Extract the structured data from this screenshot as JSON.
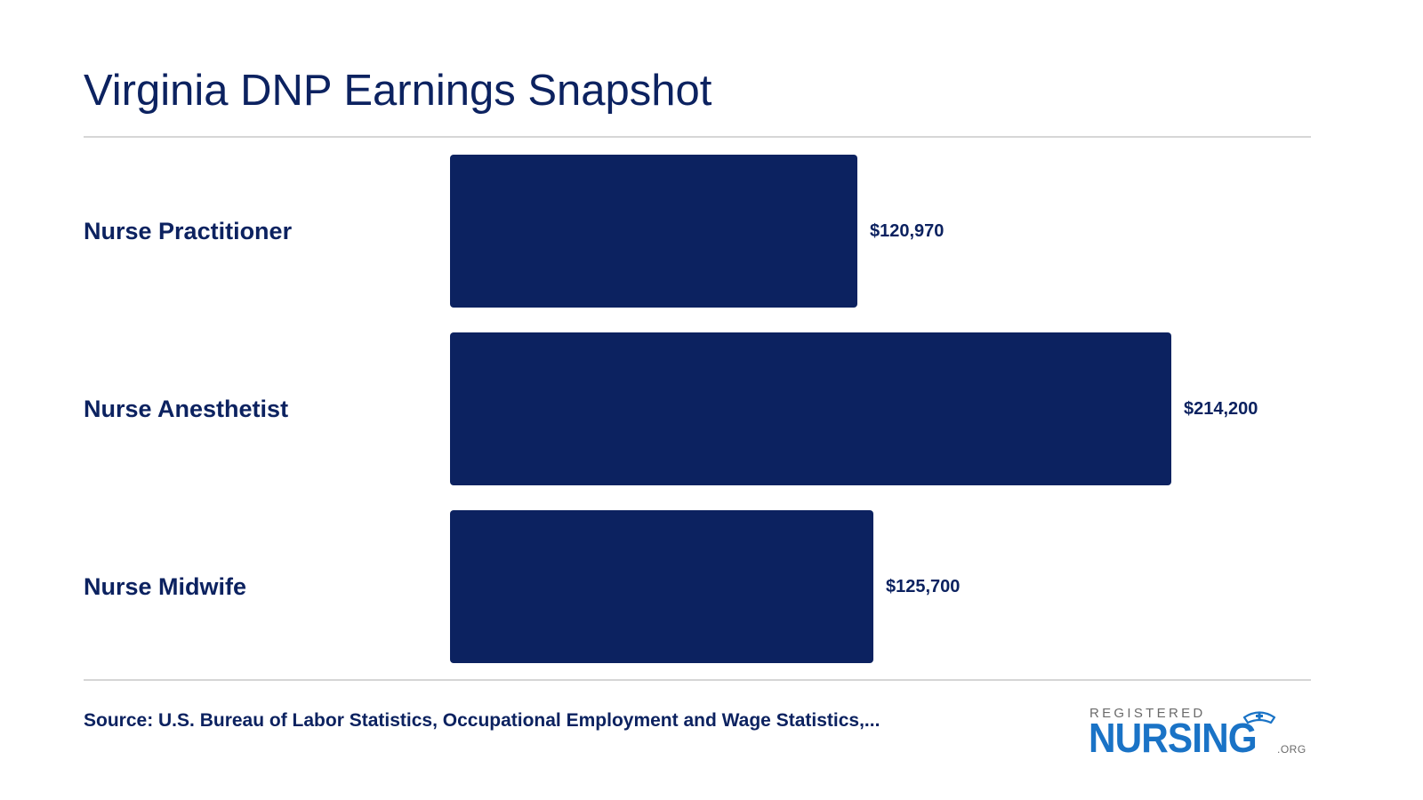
{
  "title": "Virginia DNP Earnings Snapshot",
  "source": "Source: U.S. Bureau of Labor Statistics, Occupational Employment and Wage Statistics,...",
  "logo": {
    "registered": "REGISTERED",
    "nursing": "NURSING",
    "org": ".ORG",
    "icon": "nurse-cap-icon"
  },
  "colors": {
    "bar": "#0c2260",
    "text": "#0c2260",
    "rule": "#d6d6d6",
    "logo_blue": "#1a73c6",
    "logo_gray": "#6b6b6b"
  },
  "chart_data": {
    "type": "bar",
    "orientation": "horizontal",
    "title": "Virginia DNP Earnings Snapshot",
    "categories": [
      "Nurse Practitioner",
      "Nurse Anesthetist",
      "Nurse Midwife"
    ],
    "values": [
      120970,
      214200,
      125700
    ],
    "value_labels": [
      "$120,970",
      "$214,200",
      "$125,700"
    ],
    "xlabel": "",
    "ylabel": "",
    "grid": false,
    "legend": "none"
  }
}
